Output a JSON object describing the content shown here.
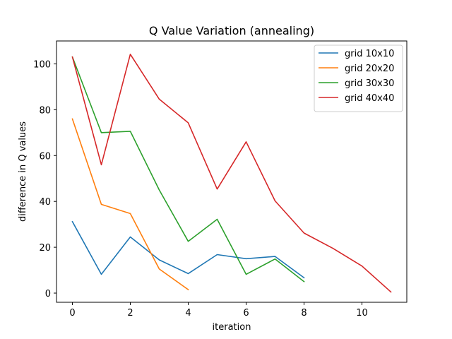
{
  "chart_data": {
    "type": "line",
    "title": "Q Value Variation (annealing)",
    "xlabel": "iteration",
    "ylabel": "difference in Q values",
    "xlim": [
      -0.55,
      11.55
    ],
    "ylim": [
      -4,
      110
    ],
    "xticks": [
      0,
      2,
      4,
      6,
      8,
      10
    ],
    "yticks": [
      0,
      20,
      40,
      60,
      80,
      100
    ],
    "grid": false,
    "legend_position": "top-right",
    "series": [
      {
        "name": "grid 10x10",
        "color": "#1f77b4",
        "x": [
          0,
          1,
          2,
          3,
          4,
          5,
          6,
          7,
          8
        ],
        "y": [
          31.2,
          8.2,
          24.5,
          14.5,
          8.5,
          16.8,
          15.0,
          16.0,
          6.7
        ]
      },
      {
        "name": "grid 20x20",
        "color": "#ff7f0e",
        "x": [
          0,
          1,
          2,
          3,
          4
        ],
        "y": [
          76.0,
          38.7,
          34.7,
          10.5,
          1.5
        ]
      },
      {
        "name": "grid 30x30",
        "color": "#2ca02c",
        "x": [
          0,
          1,
          2,
          3,
          4,
          5,
          6,
          7,
          8
        ],
        "y": [
          103.0,
          70.0,
          70.6,
          45.0,
          22.6,
          32.2,
          8.2,
          14.9,
          5.0
        ]
      },
      {
        "name": "grid 40x40",
        "color": "#d62728",
        "x": [
          0,
          1,
          2,
          3,
          4,
          5,
          6,
          7,
          8,
          9,
          10,
          11
        ],
        "y": [
          103.0,
          56.0,
          104.2,
          84.6,
          74.3,
          45.4,
          66.0,
          40.2,
          26.2,
          19.5,
          11.8,
          0.5
        ]
      }
    ]
  }
}
